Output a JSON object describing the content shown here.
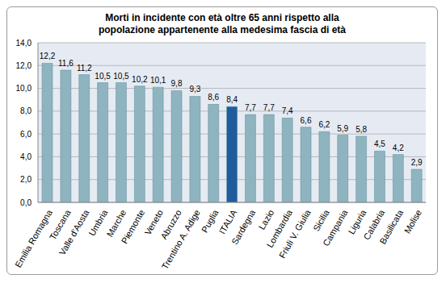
{
  "chart_data": {
    "type": "bar",
    "title": "Morti in incidente con età oltre 65 anni rispetto alla popolazione appartenente alla medesima fascia di età",
    "categories": [
      "Emilia Romagna",
      "Toscana",
      "Valle d'Aosta",
      "Umbria",
      "Marche",
      "Piemonte",
      "Veneto",
      "Abruzzo",
      "Trentino A. Adige",
      "Puglia",
      "ITALIA",
      "Sardegna",
      "Lazio",
      "Lombardia",
      "Friuli V. Giulia",
      "Sicilia",
      "Campania",
      "Liguria",
      "Calabria",
      "Basilicata",
      "Molise"
    ],
    "values": [
      12.2,
      11.6,
      11.2,
      10.5,
      10.5,
      10.2,
      10.1,
      9.8,
      9.3,
      8.6,
      8.4,
      7.7,
      7.7,
      7.4,
      6.6,
      6.2,
      5.9,
      5.8,
      4.5,
      4.2,
      2.9
    ],
    "value_labels": [
      "12,2",
      "11,6",
      "11,2",
      "10,5",
      "10,5",
      "10,2",
      "10,1",
      "9,8",
      "9,3",
      "8,6",
      "8,4",
      "7,7",
      "7,7",
      "7,4",
      "6,6",
      "6,2",
      "5,9",
      "5,8",
      "4,5",
      "4,2",
      "2,9"
    ],
    "colors": [
      "#8eb4bf",
      "#8eb4bf",
      "#8eb4bf",
      "#8eb4bf",
      "#8eb4bf",
      "#8eb4bf",
      "#8eb4bf",
      "#8eb4bf",
      "#8eb4bf",
      "#8eb4bf",
      "#1f5c9e",
      "#8eb4bf",
      "#8eb4bf",
      "#8eb4bf",
      "#8eb4bf",
      "#8eb4bf",
      "#8eb4bf",
      "#8eb4bf",
      "#8eb4bf",
      "#8eb4bf",
      "#8eb4bf"
    ],
    "ylim": [
      0,
      14
    ],
    "yticks": [
      {
        "value": 0,
        "label": "0,0"
      },
      {
        "value": 2,
        "label": "2,0"
      },
      {
        "value": 4,
        "label": "4,0"
      },
      {
        "value": 6,
        "label": "6,0"
      },
      {
        "value": 8,
        "label": "8,0"
      },
      {
        "value": 10,
        "label": "10,0"
      },
      {
        "value": 12,
        "label": "12,0"
      },
      {
        "value": 14,
        "label": "14,0"
      }
    ],
    "grid": true,
    "data_labels": true
  }
}
